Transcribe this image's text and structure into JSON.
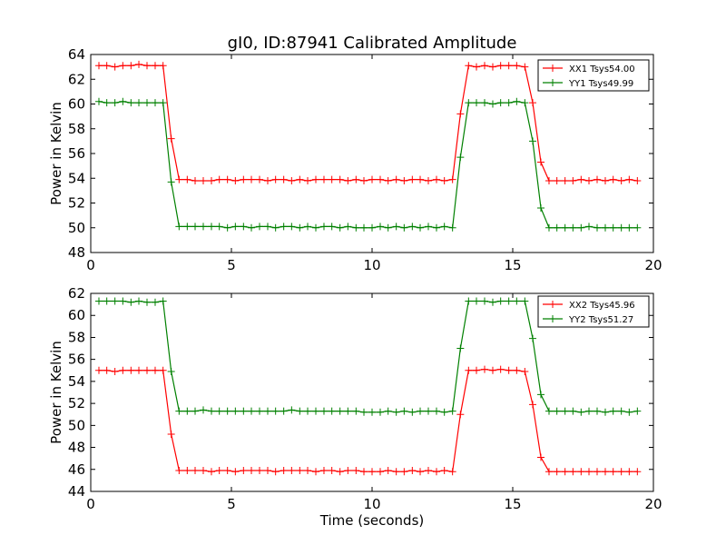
{
  "figure": {
    "title": "gI0, ID:87941 Calibrated Amplitude",
    "xlabel": "Time (seconds)"
  },
  "chart_data": [
    {
      "type": "line",
      "ylabel": "Power in Kelvin",
      "xlim": [
        0,
        20
      ],
      "ylim": [
        48,
        64
      ],
      "xticks": [
        0,
        5,
        10,
        15,
        20
      ],
      "yticks": [
        48,
        50,
        52,
        54,
        56,
        58,
        60,
        62,
        64
      ],
      "legend": "top-right",
      "x": [
        0.29,
        0.57,
        0.86,
        1.14,
        1.43,
        1.71,
        2.0,
        2.29,
        2.57,
        2.86,
        3.14,
        3.43,
        3.71,
        4.0,
        4.29,
        4.57,
        4.86,
        5.14,
        5.43,
        5.71,
        6.0,
        6.29,
        6.57,
        6.86,
        7.14,
        7.43,
        7.71,
        8.0,
        8.29,
        8.57,
        8.86,
        9.14,
        9.43,
        9.71,
        10.0,
        10.29,
        10.57,
        10.86,
        11.14,
        11.43,
        11.71,
        12.0,
        12.29,
        12.57,
        12.86,
        13.14,
        13.43,
        13.71,
        14.0,
        14.29,
        14.57,
        14.86,
        15.14,
        15.43,
        15.71,
        16.0,
        16.29,
        16.57,
        16.86,
        17.14,
        17.43,
        17.71,
        18.0,
        18.29,
        18.57,
        18.86,
        19.14,
        19.43
      ],
      "series": [
        {
          "name": "XX1 Tsys54.00",
          "color": "#ff0000",
          "values": [
            63.1,
            63.1,
            63.0,
            63.1,
            63.1,
            63.2,
            63.1,
            63.1,
            63.1,
            57.2,
            53.9,
            53.9,
            53.8,
            53.8,
            53.8,
            53.9,
            53.9,
            53.8,
            53.9,
            53.9,
            53.9,
            53.8,
            53.9,
            53.9,
            53.8,
            53.9,
            53.8,
            53.9,
            53.9,
            53.9,
            53.9,
            53.8,
            53.9,
            53.8,
            53.9,
            53.9,
            53.8,
            53.9,
            53.8,
            53.9,
            53.9,
            53.8,
            53.9,
            53.8,
            53.9,
            59.2,
            63.1,
            63.0,
            63.1,
            63.0,
            63.1,
            63.1,
            63.1,
            63.0,
            60.1,
            55.3,
            53.8,
            53.8,
            53.8,
            53.8,
            53.9,
            53.8,
            53.9,
            53.8,
            53.9,
            53.8,
            53.9,
            53.8
          ]
        },
        {
          "name": "YY1 Tsys49.99",
          "color": "#008000",
          "values": [
            60.2,
            60.1,
            60.1,
            60.2,
            60.1,
            60.1,
            60.1,
            60.1,
            60.1,
            53.7,
            50.1,
            50.1,
            50.1,
            50.1,
            50.1,
            50.1,
            50.0,
            50.1,
            50.1,
            50.0,
            50.1,
            50.1,
            50.0,
            50.1,
            50.1,
            50.0,
            50.1,
            50.0,
            50.1,
            50.1,
            50.0,
            50.1,
            50.0,
            50.0,
            50.0,
            50.1,
            50.0,
            50.1,
            50.0,
            50.1,
            50.0,
            50.1,
            50.0,
            50.1,
            50.0,
            55.7,
            60.1,
            60.1,
            60.1,
            60.0,
            60.1,
            60.1,
            60.2,
            60.1,
            57.0,
            51.6,
            50.0,
            50.0,
            50.0,
            50.0,
            50.0,
            50.1,
            50.0,
            50.0,
            50.0,
            50.0,
            50.0,
            50.0
          ]
        }
      ]
    },
    {
      "type": "line",
      "ylabel": "Power in Kelvin",
      "xlabel": "Time (seconds)",
      "xlim": [
        0,
        20
      ],
      "ylim": [
        44,
        62
      ],
      "xticks": [
        0,
        5,
        10,
        15,
        20
      ],
      "yticks": [
        44,
        46,
        48,
        50,
        52,
        54,
        56,
        58,
        60,
        62
      ],
      "legend": "top-right",
      "x": [
        0.29,
        0.57,
        0.86,
        1.14,
        1.43,
        1.71,
        2.0,
        2.29,
        2.57,
        2.86,
        3.14,
        3.43,
        3.71,
        4.0,
        4.29,
        4.57,
        4.86,
        5.14,
        5.43,
        5.71,
        6.0,
        6.29,
        6.57,
        6.86,
        7.14,
        7.43,
        7.71,
        8.0,
        8.29,
        8.57,
        8.86,
        9.14,
        9.43,
        9.71,
        10.0,
        10.29,
        10.57,
        10.86,
        11.14,
        11.43,
        11.71,
        12.0,
        12.29,
        12.57,
        12.86,
        13.14,
        13.43,
        13.71,
        14.0,
        14.29,
        14.57,
        14.86,
        15.14,
        15.43,
        15.71,
        16.0,
        16.29,
        16.57,
        16.86,
        17.14,
        17.43,
        17.71,
        18.0,
        18.29,
        18.57,
        18.86,
        19.14,
        19.43
      ],
      "series": [
        {
          "name": "XX2 Tsys45.96",
          "color": "#ff0000",
          "values": [
            55.0,
            55.0,
            54.9,
            55.0,
            55.0,
            55.0,
            55.0,
            55.0,
            55.0,
            49.2,
            45.9,
            45.9,
            45.9,
            45.9,
            45.8,
            45.9,
            45.9,
            45.8,
            45.9,
            45.9,
            45.9,
            45.9,
            45.8,
            45.9,
            45.9,
            45.9,
            45.9,
            45.8,
            45.9,
            45.9,
            45.8,
            45.9,
            45.9,
            45.8,
            45.8,
            45.8,
            45.9,
            45.8,
            45.8,
            45.9,
            45.8,
            45.9,
            45.8,
            45.9,
            45.8,
            51.0,
            55.0,
            55.0,
            55.1,
            55.0,
            55.1,
            55.0,
            55.0,
            54.9,
            51.9,
            47.1,
            45.8,
            45.8,
            45.8,
            45.8,
            45.8,
            45.8,
            45.8,
            45.8,
            45.8,
            45.8,
            45.8,
            45.8
          ]
        },
        {
          "name": "YY2 Tsys51.27",
          "color": "#008000",
          "values": [
            61.3,
            61.3,
            61.3,
            61.3,
            61.2,
            61.3,
            61.2,
            61.2,
            61.3,
            54.9,
            51.3,
            51.3,
            51.3,
            51.4,
            51.3,
            51.3,
            51.3,
            51.3,
            51.3,
            51.3,
            51.3,
            51.3,
            51.3,
            51.3,
            51.4,
            51.3,
            51.3,
            51.3,
            51.3,
            51.3,
            51.3,
            51.3,
            51.3,
            51.2,
            51.2,
            51.2,
            51.3,
            51.2,
            51.3,
            51.2,
            51.3,
            51.3,
            51.3,
            51.2,
            51.3,
            57.0,
            61.3,
            61.3,
            61.3,
            61.2,
            61.3,
            61.3,
            61.3,
            61.3,
            57.9,
            52.8,
            51.3,
            51.3,
            51.3,
            51.3,
            51.2,
            51.3,
            51.3,
            51.2,
            51.3,
            51.3,
            51.2,
            51.3
          ]
        }
      ]
    }
  ]
}
